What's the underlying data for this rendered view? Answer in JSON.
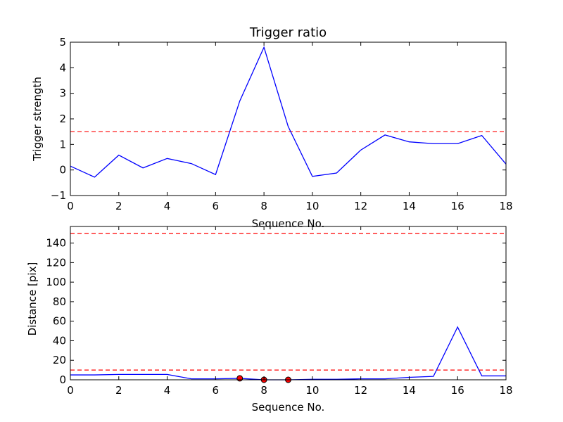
{
  "chart_data": [
    {
      "type": "line",
      "title": "Trigger ratio",
      "xlabel": "Sequence No.",
      "ylabel": "Trigger strength",
      "xlim": [
        0,
        18
      ],
      "ylim": [
        -1,
        5
      ],
      "xticks": [
        "0",
        "2",
        "4",
        "6",
        "8",
        "10",
        "12",
        "14",
        "16",
        "18"
      ],
      "yticks": [
        "−1",
        "0",
        "1",
        "2",
        "3",
        "4",
        "5"
      ],
      "line_color": "#0000ff",
      "threshold_color": "#ff0000",
      "thresholds": [
        1.5
      ],
      "x": [
        0,
        1,
        2,
        3,
        4,
        5,
        6,
        7,
        8,
        9,
        10,
        11,
        12,
        13,
        14,
        15,
        16,
        17,
        18
      ],
      "y": [
        0.15,
        -0.28,
        0.58,
        0.08,
        0.45,
        0.25,
        -0.18,
        2.7,
        4.8,
        1.7,
        -0.25,
        -0.12,
        0.78,
        1.37,
        1.1,
        1.03,
        1.03,
        1.35,
        0.23
      ],
      "markers": []
    },
    {
      "type": "line",
      "title": "",
      "xlabel": "Sequence No.",
      "ylabel": "Distance [pix]",
      "xlim": [
        0,
        18
      ],
      "ylim": [
        0,
        157
      ],
      "xticks": [
        "0",
        "2",
        "4",
        "6",
        "8",
        "10",
        "12",
        "14",
        "16",
        "18"
      ],
      "yticks": [
        "0",
        "20",
        "40",
        "60",
        "80",
        "100",
        "120",
        "140"
      ],
      "line_color": "#0000ff",
      "threshold_color": "#ff0000",
      "marker_color": "#ff0000",
      "thresholds": [
        10,
        150
      ],
      "x": [
        0,
        1,
        2,
        3,
        4,
        5,
        6,
        7,
        8,
        9,
        10,
        11,
        12,
        13,
        14,
        15,
        16,
        17,
        18
      ],
      "y": [
        5,
        5,
        5.5,
        5.5,
        5.5,
        1,
        1,
        1.5,
        0,
        0,
        0.5,
        0.5,
        1,
        1,
        2.5,
        3.5,
        54,
        4,
        4
      ],
      "markers": [
        {
          "x": 7,
          "y": 1.5
        },
        {
          "x": 8,
          "y": 0
        },
        {
          "x": 9,
          "y": 0
        }
      ]
    }
  ]
}
